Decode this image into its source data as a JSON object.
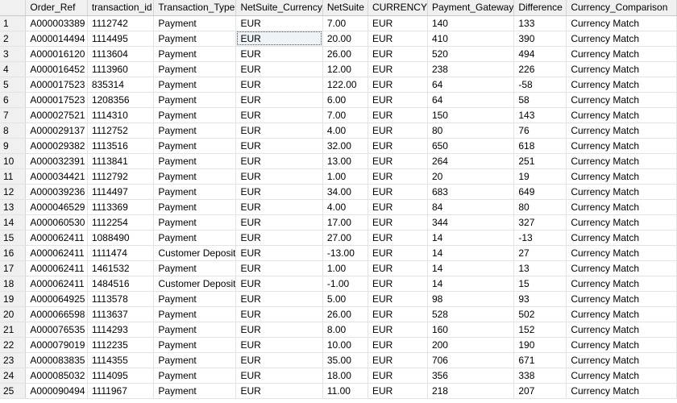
{
  "columns": [
    "Order_Ref",
    "transaction_id",
    "Transaction_Type",
    "NetSuite_Currency",
    "NetSuite",
    "CURRENCY",
    "Payment_Gateway",
    "Difference",
    "Currency_Comparison"
  ],
  "rows": [
    {
      "n": "1",
      "c": [
        "A000003389",
        "1112742",
        "Payment",
        "EUR",
        "7.00",
        "EUR",
        "140",
        "133",
        "Currency Match"
      ]
    },
    {
      "n": "2",
      "c": [
        "A000014494",
        "1114495",
        "Payment",
        "EUR",
        "20.00",
        "EUR",
        "410",
        "390",
        "Currency Match"
      ]
    },
    {
      "n": "3",
      "c": [
        "A000016120",
        "1113604",
        "Payment",
        "EUR",
        "26.00",
        "EUR",
        "520",
        "494",
        "Currency Match"
      ]
    },
    {
      "n": "4",
      "c": [
        "A000016452",
        "1113960",
        "Payment",
        "EUR",
        "12.00",
        "EUR",
        "238",
        "226",
        "Currency Match"
      ]
    },
    {
      "n": "5",
      "c": [
        "A000017523",
        "835314",
        "Payment",
        "EUR",
        "122.00",
        "EUR",
        "64",
        "-58",
        "Currency Match"
      ]
    },
    {
      "n": "6",
      "c": [
        "A000017523",
        "1208356",
        "Payment",
        "EUR",
        "6.00",
        "EUR",
        "64",
        "58",
        "Currency Match"
      ]
    },
    {
      "n": "7",
      "c": [
        "A000027521",
        "1114310",
        "Payment",
        "EUR",
        "7.00",
        "EUR",
        "150",
        "143",
        "Currency Match"
      ]
    },
    {
      "n": "8",
      "c": [
        "A000029137",
        "1112752",
        "Payment",
        "EUR",
        "4.00",
        "EUR",
        "80",
        "76",
        "Currency Match"
      ]
    },
    {
      "n": "9",
      "c": [
        "A000029382",
        "1113516",
        "Payment",
        "EUR",
        "32.00",
        "EUR",
        "650",
        "618",
        "Currency Match"
      ]
    },
    {
      "n": "10",
      "c": [
        "A000032391",
        "1113841",
        "Payment",
        "EUR",
        "13.00",
        "EUR",
        "264",
        "251",
        "Currency Match"
      ]
    },
    {
      "n": "11",
      "c": [
        "A000034421",
        "1112792",
        "Payment",
        "EUR",
        "1.00",
        "EUR",
        "20",
        "19",
        "Currency Match"
      ]
    },
    {
      "n": "12",
      "c": [
        "A000039236",
        "1114497",
        "Payment",
        "EUR",
        "34.00",
        "EUR",
        "683",
        "649",
        "Currency Match"
      ]
    },
    {
      "n": "13",
      "c": [
        "A000046529",
        "1113369",
        "Payment",
        "EUR",
        "4.00",
        "EUR",
        "84",
        "80",
        "Currency Match"
      ]
    },
    {
      "n": "14",
      "c": [
        "A000060530",
        "1112254",
        "Payment",
        "EUR",
        "17.00",
        "EUR",
        "344",
        "327",
        "Currency Match"
      ]
    },
    {
      "n": "15",
      "c": [
        "A000062411",
        "1088490",
        "Payment",
        "EUR",
        "27.00",
        "EUR",
        "14",
        "-13",
        "Currency Match"
      ]
    },
    {
      "n": "16",
      "c": [
        "A000062411",
        "1111474",
        "Customer Deposit",
        "EUR",
        "-13.00",
        "EUR",
        "14",
        "27",
        "Currency Match"
      ]
    },
    {
      "n": "17",
      "c": [
        "A000062411",
        "1461532",
        "Payment",
        "EUR",
        "1.00",
        "EUR",
        "14",
        "13",
        "Currency Match"
      ]
    },
    {
      "n": "18",
      "c": [
        "A000062411",
        "1484516",
        "Customer Deposit",
        "EUR",
        "-1.00",
        "EUR",
        "14",
        "15",
        "Currency Match"
      ]
    },
    {
      "n": "19",
      "c": [
        "A000064925",
        "1113578",
        "Payment",
        "EUR",
        "5.00",
        "EUR",
        "98",
        "93",
        "Currency Match"
      ]
    },
    {
      "n": "20",
      "c": [
        "A000066598",
        "1113637",
        "Payment",
        "EUR",
        "26.00",
        "EUR",
        "528",
        "502",
        "Currency Match"
      ]
    },
    {
      "n": "21",
      "c": [
        "A000076535",
        "1114293",
        "Payment",
        "EUR",
        "8.00",
        "EUR",
        "160",
        "152",
        "Currency Match"
      ]
    },
    {
      "n": "22",
      "c": [
        "A000079019",
        "1112235",
        "Payment",
        "EUR",
        "10.00",
        "EUR",
        "200",
        "190",
        "Currency Match"
      ]
    },
    {
      "n": "23",
      "c": [
        "A000083835",
        "1114355",
        "Payment",
        "EUR",
        "35.00",
        "EUR",
        "706",
        "671",
        "Currency Match"
      ]
    },
    {
      "n": "24",
      "c": [
        "A000085032",
        "1114095",
        "Payment",
        "EUR",
        "18.00",
        "EUR",
        "356",
        "338",
        "Currency Match"
      ]
    },
    {
      "n": "25",
      "c": [
        "A000090494",
        "1111967",
        "Payment",
        "EUR",
        "11.00",
        "EUR",
        "218",
        "207",
        "Currency Match"
      ]
    }
  ]
}
